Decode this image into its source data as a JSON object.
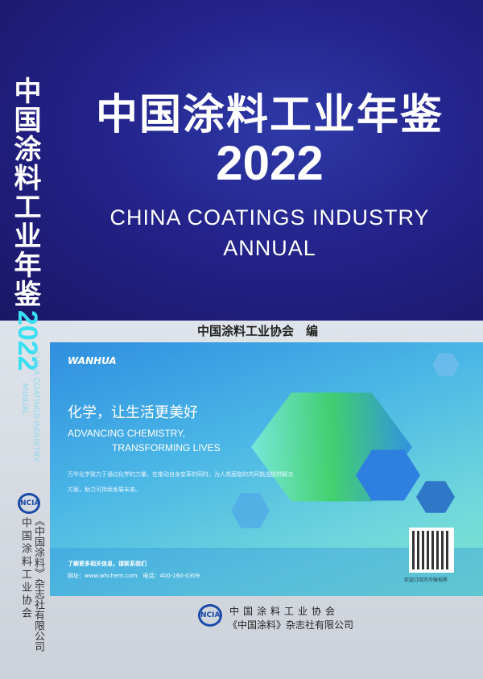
{
  "cover": {
    "title_cn": "中国涂料工业年鉴",
    "year": "2022",
    "title_en_line1": "CHINA COATINGS INDUSTRY",
    "title_en_line2": "ANNUAL",
    "editor": "中国涂料工业协会　编"
  },
  "spine": {
    "title_cn": "中国涂料工业年鉴",
    "year": "2022",
    "title_en_line1": "CHINA COATINGS INDUSTRY",
    "title_en_line2": "ANNUAL",
    "logo": "NCIA",
    "publisher1": "中国涂料工业协会",
    "publisher2": "《中国涂料》杂志社有限公司"
  },
  "ad": {
    "brand": "WANHUA",
    "slogan": "化学，让生活更美好",
    "en_line1": "ADVANCING CHEMISTRY,",
    "en_line2": "TRANSFORMING LIVES",
    "description": "万华化学致力于通过化学的力量，在推动自身变革的同时，为人类面临的共同挑战提供解决方案，助力可持续发展未来。",
    "contact_heading": "了解更多相关信息，请联系我们",
    "contact_info": "网址：www.whchem.com　电话：400-160-0309",
    "qr_caption": "欢迎订阅万华微视界"
  },
  "footer": {
    "logo": "NCIA",
    "publisher1": "中国涂料工业协会",
    "publisher2": "《中国涂料》杂志社有限公司"
  }
}
